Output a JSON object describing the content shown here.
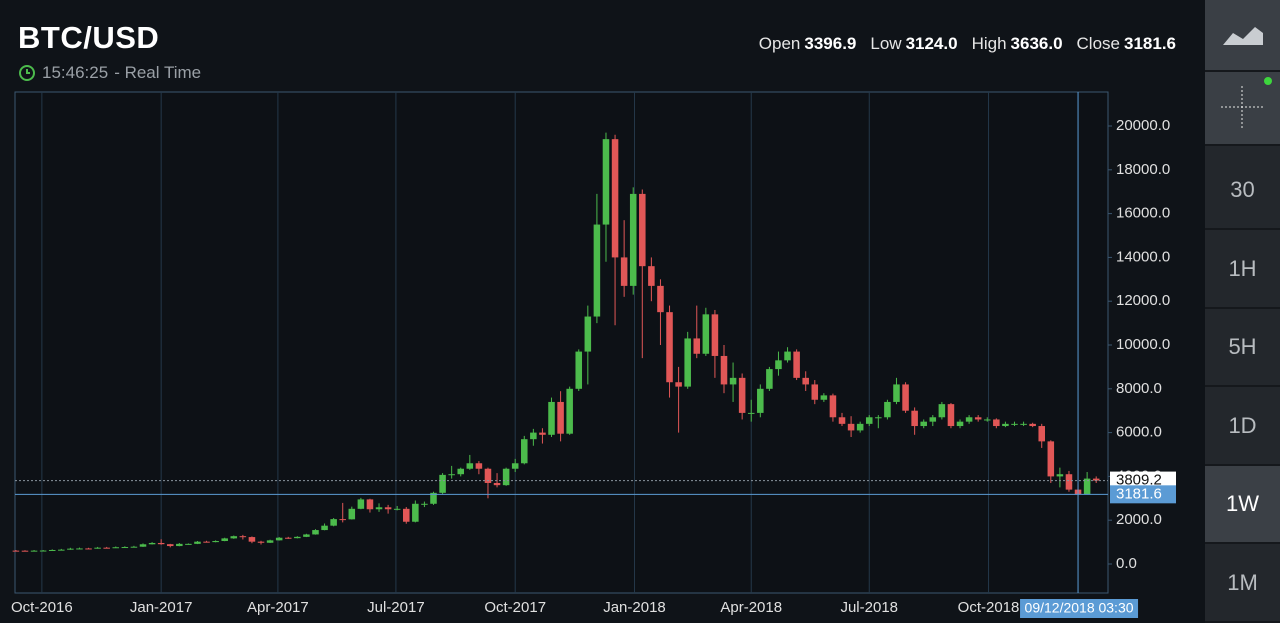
{
  "header": {
    "symbol": "BTC/USD",
    "time": "15:46:25",
    "mode": "- Real Time"
  },
  "ohlc": [
    {
      "label": "Open",
      "value": "3396.9"
    },
    {
      "label": "Low",
      "value": "3124.0"
    },
    {
      "label": "High",
      "value": "3636.0"
    },
    {
      "label": "Close",
      "value": "3181.6"
    }
  ],
  "sidebar": {
    "intervals": [
      "30",
      "1H",
      "5H",
      "1D",
      "1W",
      "1M"
    ],
    "selected_index": 4
  },
  "chart_data": {
    "type": "candlestick",
    "up_color": "#4cbb4c",
    "down_color": "#e15757",
    "categories": [
      null,
      null,
      null,
      null,
      null,
      null,
      null,
      null,
      null,
      null,
      null,
      null,
      null,
      null,
      null,
      null,
      null,
      null,
      null,
      null,
      null,
      null,
      null,
      null,
      null,
      null,
      null,
      null,
      null,
      null,
      null,
      null,
      null,
      null,
      null,
      null,
      null,
      null,
      null,
      null,
      null,
      null,
      null,
      null,
      null,
      null,
      null,
      null,
      null,
      null,
      null,
      null,
      null,
      null,
      null,
      null,
      null,
      null,
      null,
      null,
      null,
      null,
      null,
      null,
      null,
      null,
      null,
      null,
      null,
      null,
      null,
      null,
      null,
      null,
      null,
      null,
      null,
      null,
      null,
      null,
      null,
      null,
      null,
      null,
      null,
      null,
      null,
      null,
      null,
      null,
      null,
      null,
      null,
      null,
      null,
      null,
      null,
      null,
      null,
      null,
      null,
      null,
      null,
      null,
      null,
      null,
      null,
      null,
      null,
      null,
      null,
      null,
      null,
      null,
      null,
      null,
      null,
      null,
      null,
      null
    ],
    "open": [
      610,
      608,
      600,
      610,
      615,
      640,
      655,
      700,
      710,
      705,
      745,
      735,
      765,
      775,
      790,
      900,
      960,
      905,
      820,
      920,
      920,
      1020,
      1000,
      1050,
      1170,
      1270,
      1230,
      1020,
      970,
      1080,
      1200,
      1180,
      1240,
      1350,
      1550,
      1750,
      2050,
      2040,
      2520,
      2950,
      2500,
      2590,
      2500,
      2520,
      1930,
      2750,
      2750,
      3250,
      4070,
      4100,
      4350,
      4600,
      4350,
      3700,
      3600,
      4350,
      4600,
      5700,
      6000,
      5900,
      7400,
      5950,
      8000,
      9700,
      11300,
      15500,
      19400,
      14000,
      12700,
      16900,
      13600,
      12700,
      11500,
      8300,
      8100,
      10300,
      9600,
      11400,
      9500,
      8200,
      8500,
      6900,
      6900,
      8000,
      8900,
      9300,
      9700,
      8500,
      8200,
      7500,
      7700,
      6700,
      6400,
      6100,
      6400,
      6700,
      6700,
      7400,
      8200,
      7000,
      6300,
      6500,
      6700,
      7300,
      6300,
      6500,
      6700,
      6600,
      6600,
      6300,
      6400,
      6400,
      6400,
      6300,
      5600,
      4000,
      4100,
      3396.9,
      3181.6,
      3900
    ],
    "high": [
      640,
      630,
      640,
      640,
      670,
      690,
      740,
      750,
      740,
      780,
      780,
      800,
      810,
      830,
      940,
      1000,
      1130,
      920,
      960,
      940,
      1050,
      1060,
      1080,
      1200,
      1300,
      1330,
      1260,
      1060,
      1110,
      1230,
      1240,
      1270,
      1380,
      1590,
      1850,
      2100,
      2790,
      2620,
      3020,
      2980,
      2770,
      2700,
      2650,
      2600,
      2900,
      2850,
      3300,
      4150,
      4480,
      4400,
      4980,
      4700,
      4400,
      4150,
      4400,
      4800,
      5850,
      6170,
      6200,
      7600,
      7890,
      8100,
      9800,
      11800,
      16900,
      19700,
      19600,
      15700,
      17200,
      17100,
      14000,
      13000,
      11800,
      9000,
      10600,
      11800,
      11700,
      11600,
      10000,
      9200,
      8700,
      7500,
      8200,
      9000,
      9700,
      9900,
      9800,
      8800,
      8400,
      7800,
      7780,
      6900,
      6750,
      6500,
      6800,
      6800,
      7500,
      8500,
      8300,
      7150,
      6600,
      6800,
      7400,
      7350,
      6600,
      6800,
      6800,
      6700,
      6650,
      6500,
      6500,
      6500,
      6450,
      6400,
      5650,
      4400,
      4250,
      3636,
      4200,
      4000
    ],
    "low": [
      590,
      585,
      590,
      600,
      610,
      630,
      650,
      690,
      690,
      700,
      720,
      730,
      750,
      770,
      780,
      890,
      880,
      760,
      810,
      880,
      910,
      980,
      990,
      1040,
      1150,
      1120,
      950,
      890,
      960,
      1070,
      1150,
      1170,
      1230,
      1340,
      1540,
      1720,
      1900,
      2030,
      2500,
      2350,
      2380,
      2300,
      2450,
      1840,
      1900,
      2600,
      2700,
      3200,
      3900,
      4000,
      4300,
      4100,
      3000,
      3500,
      3570,
      4200,
      4550,
      5400,
      5500,
      5800,
      5600,
      5900,
      7900,
      8200,
      11000,
      13800,
      10900,
      12200,
      12300,
      9400,
      12000,
      10000,
      7600,
      6000,
      8000,
      9400,
      9500,
      8500,
      7800,
      7400,
      6600,
      6500,
      6700,
      7900,
      8600,
      9200,
      8400,
      7900,
      7300,
      7400,
      6500,
      6300,
      5800,
      6000,
      6300,
      6200,
      6600,
      7300,
      6900,
      5900,
      6200,
      6300,
      6600,
      6200,
      6200,
      6400,
      6500,
      6500,
      6200,
      6250,
      6300,
      6300,
      6250,
      5300,
      3700,
      3500,
      3300,
      3124,
      3200,
      3700
    ],
    "close": [
      608,
      600,
      610,
      615,
      640,
      655,
      700,
      710,
      705,
      745,
      735,
      765,
      775,
      790,
      900,
      960,
      905,
      820,
      920,
      920,
      1020,
      1000,
      1050,
      1170,
      1270,
      1230,
      1020,
      970,
      1080,
      1200,
      1180,
      1240,
      1350,
      1550,
      1750,
      2050,
      2040,
      2520,
      2950,
      2500,
      2590,
      2500,
      2520,
      1930,
      2750,
      2750,
      3250,
      4070,
      4100,
      4350,
      4600,
      4350,
      3700,
      3600,
      4350,
      4600,
      5700,
      6000,
      5900,
      7400,
      5950,
      8000,
      9700,
      11300,
      15500,
      19400,
      14000,
      12700,
      16900,
      13600,
      12700,
      11500,
      8300,
      8100,
      10300,
      9600,
      11400,
      9500,
      8200,
      8500,
      6900,
      6900,
      8000,
      8900,
      9300,
      9700,
      8500,
      8200,
      7500,
      7700,
      6700,
      6400,
      6100,
      6400,
      6700,
      6700,
      7400,
      8200,
      7000,
      6300,
      6500,
      6700,
      7300,
      6300,
      6500,
      6700,
      6600,
      6600,
      6300,
      6400,
      6400,
      6400,
      6300,
      5600,
      4000,
      4100,
      3396.9,
      3181.6,
      3900,
      3809.2
    ],
    "xlim": [
      -0.1,
      120.3
    ],
    "xticks": [
      {
        "value": 2.86,
        "label": "Oct-2016"
      },
      {
        "value": 16,
        "label": "Jan-2017"
      },
      {
        "value": 28.86,
        "label": "Apr-2017"
      },
      {
        "value": 41.86,
        "label": "Jul-2017"
      },
      {
        "value": 55,
        "label": "Oct-2017"
      },
      {
        "value": 68.14,
        "label": "Jan-2018"
      },
      {
        "value": 81,
        "label": "Apr-2018"
      },
      {
        "value": 94,
        "label": "Jul-2018"
      },
      {
        "value": 107.14,
        "label": "Oct-2018"
      }
    ],
    "ylim": [
      -1324,
      21553
    ],
    "yticks": [
      {
        "value": 0,
        "label": "0.0"
      },
      {
        "value": 2000,
        "label": "2000.0"
      },
      {
        "value": 4000,
        "label": "4000.0"
      },
      {
        "value": 6000,
        "label": "6000.0"
      },
      {
        "value": 8000,
        "label": "8000.0"
      },
      {
        "value": 10000,
        "label": "10000.0"
      },
      {
        "value": 12000,
        "label": "12000.0"
      },
      {
        "value": 14000,
        "label": "14000.0"
      },
      {
        "value": 16000,
        "label": "16000.0"
      },
      {
        "value": 18000,
        "label": "18000.0"
      },
      {
        "value": 20000,
        "label": "20000.0"
      }
    ],
    "grid": true,
    "crosshair_label": "09/12/2018 03:30"
  }
}
